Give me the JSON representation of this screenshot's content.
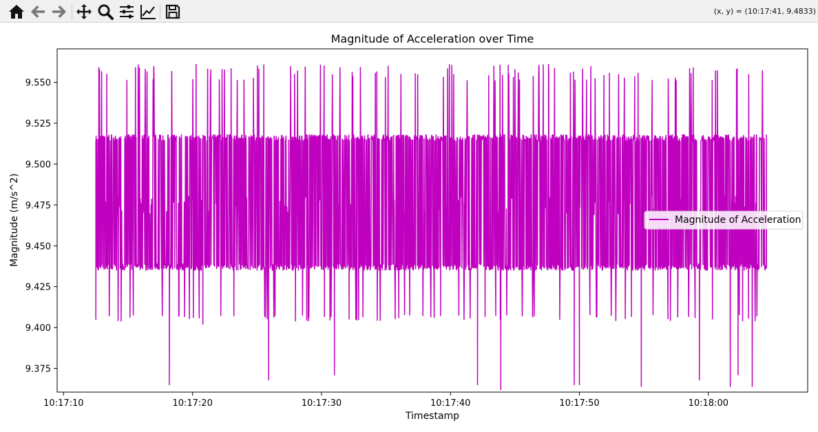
{
  "toolbar": {
    "buttons": [
      {
        "name": "home-icon",
        "tooltip": "Reset original view"
      },
      {
        "name": "back-icon",
        "tooltip": "Back to previous view"
      },
      {
        "name": "forward-icon",
        "tooltip": "Forward to next view"
      },
      {
        "name": "pan-icon",
        "tooltip": "Pan axes"
      },
      {
        "name": "zoom-icon",
        "tooltip": "Zoom to rectangle"
      },
      {
        "name": "configure-subplots-icon",
        "tooltip": "Configure subplots"
      },
      {
        "name": "edit-axis-icon",
        "tooltip": "Edit axis, curve and image parameters"
      },
      {
        "name": "save-icon",
        "tooltip": "Save the figure"
      }
    ],
    "coords": "(x, y) = (10:17:41, 9.4833)"
  },
  "chart_data": {
    "type": "line",
    "title": "Magnitude of Acceleration over Time",
    "xlabel": "Timestamp",
    "ylabel": "Magnitude (m/s^2)",
    "xlim": [
      "10:17:09.5",
      "10:18:07.7"
    ],
    "ylim": [
      9.3605,
      9.5705
    ],
    "x_ticks": [
      "10:17:10",
      "10:17:20",
      "10:17:30",
      "10:17:40",
      "10:17:50",
      "10:18:00"
    ],
    "y_ticks": [
      "9.375",
      "9.400",
      "9.425",
      "9.450",
      "9.475",
      "9.500",
      "9.525",
      "9.550"
    ],
    "x_range": [
      "10:17:12.5",
      "10:18:04.5"
    ],
    "legend_position": "center-right",
    "grid": false,
    "series": [
      {
        "name": "Magnitude of Acceleration",
        "color": "#bf00bf",
        "x": [
          "10:17:12.5",
          "10:17:18.2",
          "10:17:20.8",
          "10:17:25.9",
          "10:17:31.0",
          "10:17:42.1",
          "10:17:43.9",
          "10:17:47.6",
          "10:17:49.6",
          "10:17:50.0",
          "10:17:54.8",
          "10:17:59.3",
          "10:18:01.7",
          "10:18:02.3",
          "10:18:03.4",
          "10:18:04.5"
        ],
        "y": [
          9.405,
          9.365,
          9.402,
          9.368,
          9.371,
          9.365,
          9.362,
          9.561,
          9.365,
          9.365,
          9.364,
          9.368,
          9.364,
          9.371,
          9.364,
          9.436
        ],
        "band": {
          "dense_low": 9.435,
          "dense_high": 9.518,
          "mid": 9.475,
          "spike_high": 9.556,
          "spike_low": 9.408
        }
      }
    ]
  }
}
